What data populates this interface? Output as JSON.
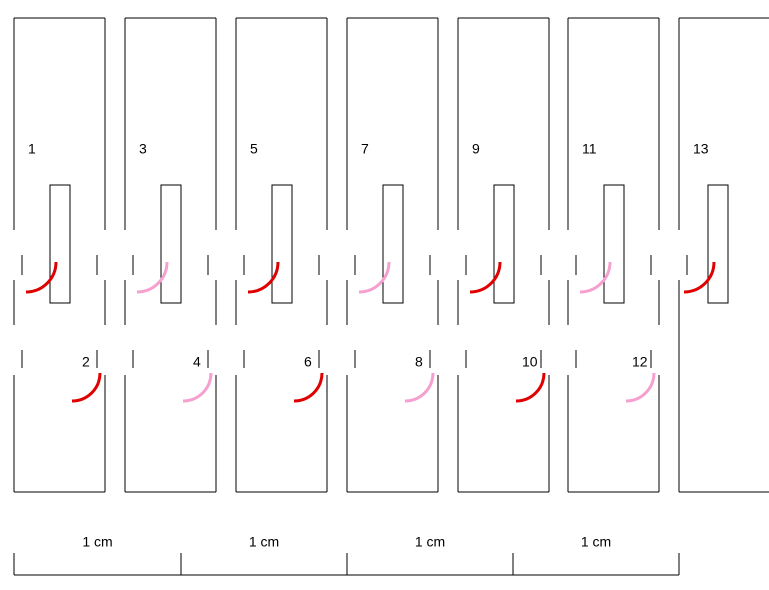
{
  "strips": [
    {
      "top_label": "1",
      "bottom_label": "2"
    },
    {
      "top_label": "3",
      "bottom_label": "4"
    },
    {
      "top_label": "5",
      "bottom_label": "6"
    },
    {
      "top_label": "7",
      "bottom_label": "8"
    },
    {
      "top_label": "9",
      "bottom_label": "10"
    },
    {
      "top_label": "11",
      "bottom_label": "12"
    },
    {
      "top_label": "13"
    }
  ],
  "scale": {
    "labels": [
      "1 cm",
      "1 cm",
      "1 cm",
      "1 cm"
    ]
  }
}
